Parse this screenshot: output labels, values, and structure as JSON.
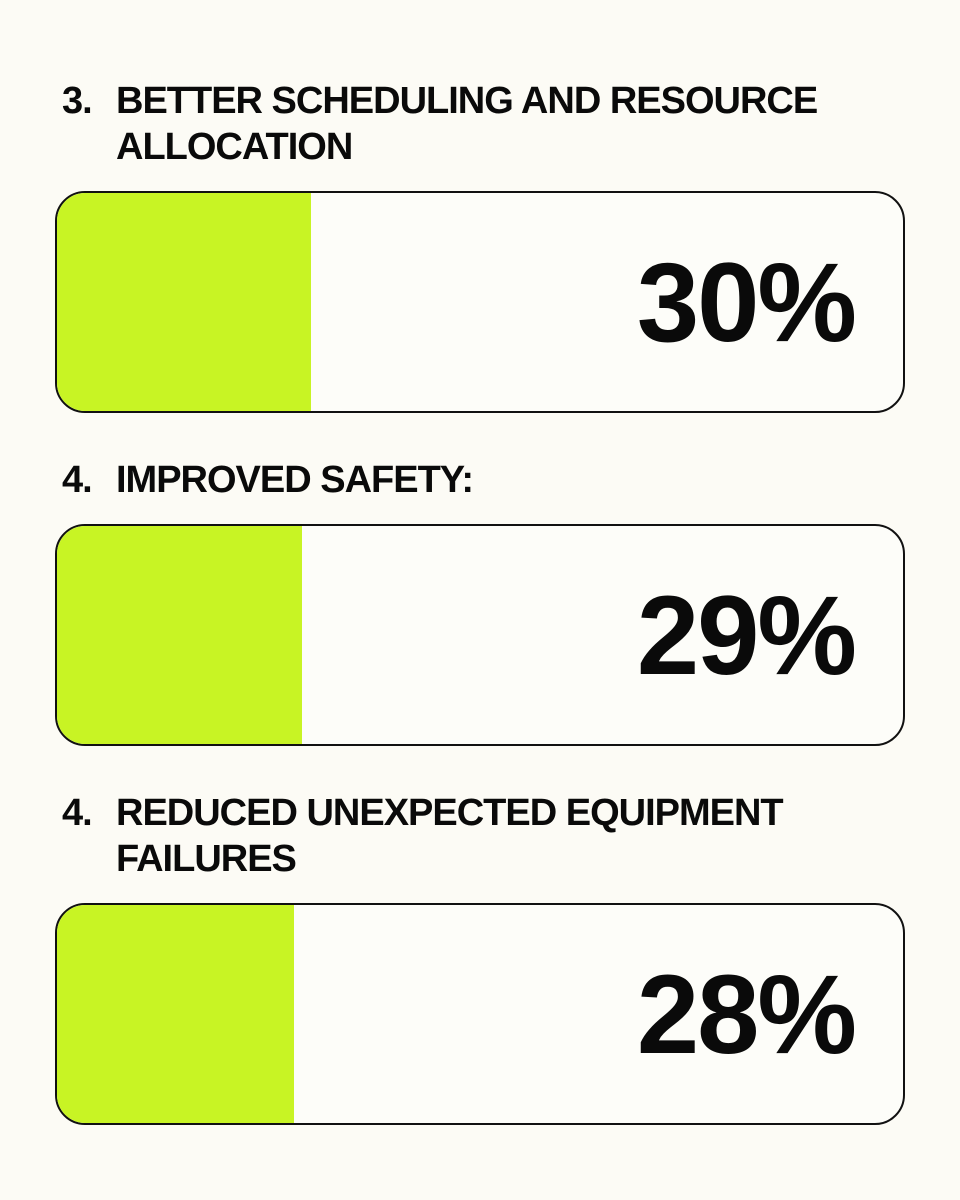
{
  "chart_data": {
    "type": "bar",
    "ranks": [
      "3.",
      "4.",
      "4."
    ],
    "categories": [
      "BETTER SCHEDULING AND RESOURCE ALLOCATION",
      "IMPROVED SAFETY:",
      "REDUCED UNEXPECTED EQUIPMENT FAILURES"
    ],
    "values": [
      30,
      29,
      28
    ],
    "value_labels": [
      "30%",
      "29%",
      "28%"
    ],
    "xlim": [
      0,
      100
    ],
    "color": "#c8f424"
  }
}
